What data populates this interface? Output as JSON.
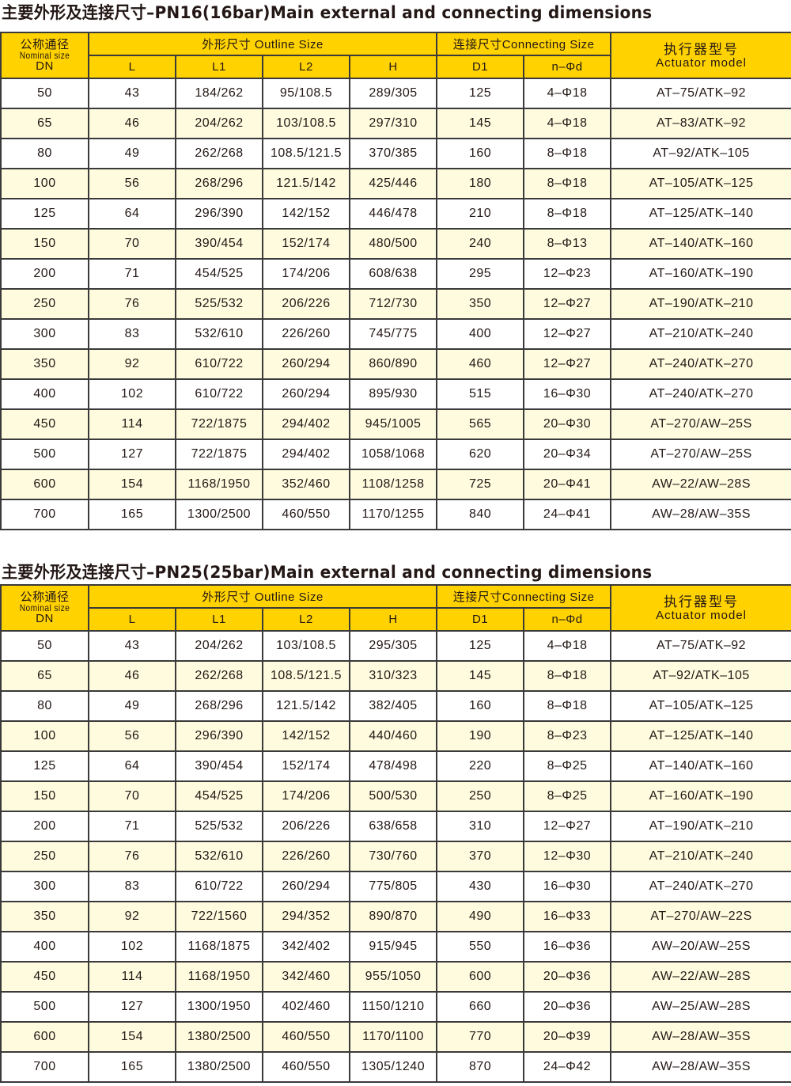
{
  "colors": {
    "header": "#FFD200",
    "stripe": "#FFFBDF",
    "border": "#3a3a3a"
  },
  "tables": [
    {
      "title": "主要外形及连接尺寸–PN16(16bar)Main external and connecting dimensions",
      "header": {
        "dn_cn": "公称通径",
        "dn_en": "Nominal size",
        "dn": "DN",
        "outline": "外形尺寸 Outline Size",
        "connecting": "连接尺寸Connecting Size",
        "actuator_cn": "执行器型号",
        "actuator_en": "Actuator model",
        "columns": [
          "L",
          "L1",
          "L2",
          "H",
          "D1",
          "n–Φd"
        ]
      },
      "rows": [
        [
          "50",
          "43",
          "184/262",
          "95/108.5",
          "289/305",
          "125",
          "4–Φ18",
          "AT–75/ATK–92"
        ],
        [
          "65",
          "46",
          "204/262",
          "103/108.5",
          "297/310",
          "145",
          "4–Φ18",
          "AT–83/ATK–92"
        ],
        [
          "80",
          "49",
          "262/268",
          "108.5/121.5",
          "370/385",
          "160",
          "8–Φ18",
          "AT–92/ATK–105"
        ],
        [
          "100",
          "56",
          "268/296",
          "121.5/142",
          "425/446",
          "180",
          "8–Φ18",
          "AT–105/ATK–125"
        ],
        [
          "125",
          "64",
          "296/390",
          "142/152",
          "446/478",
          "210",
          "8–Φ18",
          "AT–125/ATK–140"
        ],
        [
          "150",
          "70",
          "390/454",
          "152/174",
          "480/500",
          "240",
          "8–Φ13",
          "AT–140/ATK–160"
        ],
        [
          "200",
          "71",
          "454/525",
          "174/206",
          "608/638",
          "295",
          "12–Φ23",
          "AT–160/ATK–190"
        ],
        [
          "250",
          "76",
          "525/532",
          "206/226",
          "712/730",
          "350",
          "12–Φ27",
          "AT–190/ATK–210"
        ],
        [
          "300",
          "83",
          "532/610",
          "226/260",
          "745/775",
          "400",
          "12–Φ27",
          "AT–210/ATK–240"
        ],
        [
          "350",
          "92",
          "610/722",
          "260/294",
          "860/890",
          "460",
          "12–Φ27",
          "AT–240/ATK–270"
        ],
        [
          "400",
          "102",
          "610/722",
          "260/294",
          "895/930",
          "515",
          "16–Φ30",
          "AT–240/ATK–270"
        ],
        [
          "450",
          "114",
          "722/1875",
          "294/402",
          "945/1005",
          "565",
          "20–Φ30",
          "AT–270/AW–25S"
        ],
        [
          "500",
          "127",
          "722/1875",
          "294/402",
          "1058/1068",
          "620",
          "20–Φ34",
          "AT–270/AW–25S"
        ],
        [
          "600",
          "154",
          "1168/1950",
          "352/460",
          "1108/1258",
          "725",
          "20–Φ41",
          "AW–22/AW–28S"
        ],
        [
          "700",
          "165",
          "1300/2500",
          "460/550",
          "1170/1255",
          "840",
          "24–Φ41",
          "AW–28/AW–35S"
        ]
      ]
    },
    {
      "title": "主要外形及连接尺寸–PN25(25bar)Main external and connecting dimensions",
      "header": {
        "dn_cn": "公称通径",
        "dn_en": "Nominal size",
        "dn": "DN",
        "outline": "外形尺寸 Outline Size",
        "connecting": "连接尺寸Connecting Size",
        "actuator_cn": "执行器型号",
        "actuator_en": "Actuator model",
        "columns": [
          "L",
          "L1",
          "L2",
          "H",
          "D1",
          "n–Φd"
        ]
      },
      "rows": [
        [
          "50",
          "43",
          "204/262",
          "103/108.5",
          "295/305",
          "125",
          "4–Φ18",
          "AT–75/ATK–92"
        ],
        [
          "65",
          "46",
          "262/268",
          "108.5/121.5",
          "310/323",
          "145",
          "8–Φ18",
          "AT–92/ATK–105"
        ],
        [
          "80",
          "49",
          "268/296",
          "121.5/142",
          "382/405",
          "160",
          "8–Φ18",
          "AT–105/ATK–125"
        ],
        [
          "100",
          "56",
          "296/390",
          "142/152",
          "440/460",
          "190",
          "8–Φ23",
          "AT–125/ATK–140"
        ],
        [
          "125",
          "64",
          "390/454",
          "152/174",
          "478/498",
          "220",
          "8–Φ25",
          "AT–140/ATK–160"
        ],
        [
          "150",
          "70",
          "454/525",
          "174/206",
          "500/530",
          "250",
          "8–Φ25",
          "AT–160/ATK–190"
        ],
        [
          "200",
          "71",
          "525/532",
          "206/226",
          "638/658",
          "310",
          "12–Φ27",
          "AT–190/ATK–210"
        ],
        [
          "250",
          "76",
          "532/610",
          "226/260",
          "730/760",
          "370",
          "12–Φ30",
          "AT–210/ATK–240"
        ],
        [
          "300",
          "83",
          "610/722",
          "260/294",
          "775/805",
          "430",
          "16–Φ30",
          "AT–240/ATK–270"
        ],
        [
          "350",
          "92",
          "722/1560",
          "294/352",
          "890/870",
          "490",
          "16–Φ33",
          "AT–270/AW–22S"
        ],
        [
          "400",
          "102",
          "1168/1875",
          "342/402",
          "915/945",
          "550",
          "16–Φ36",
          "AW–20/AW–25S"
        ],
        [
          "450",
          "114",
          "1168/1950",
          "342/460",
          "955/1050",
          "600",
          "20–Φ36",
          "AW–22/AW–28S"
        ],
        [
          "500",
          "127",
          "1300/1950",
          "402/460",
          "1150/1210",
          "660",
          "20–Φ36",
          "AW–25/AW–28S"
        ],
        [
          "600",
          "154",
          "1380/2500",
          "460/550",
          "1170/1100",
          "770",
          "20–Φ39",
          "AW–28/AW–35S"
        ],
        [
          "700",
          "165",
          "1380/2500",
          "460/550",
          "1305/1240",
          "870",
          "24–Φ42",
          "AW–28/AW–35S"
        ]
      ]
    }
  ]
}
